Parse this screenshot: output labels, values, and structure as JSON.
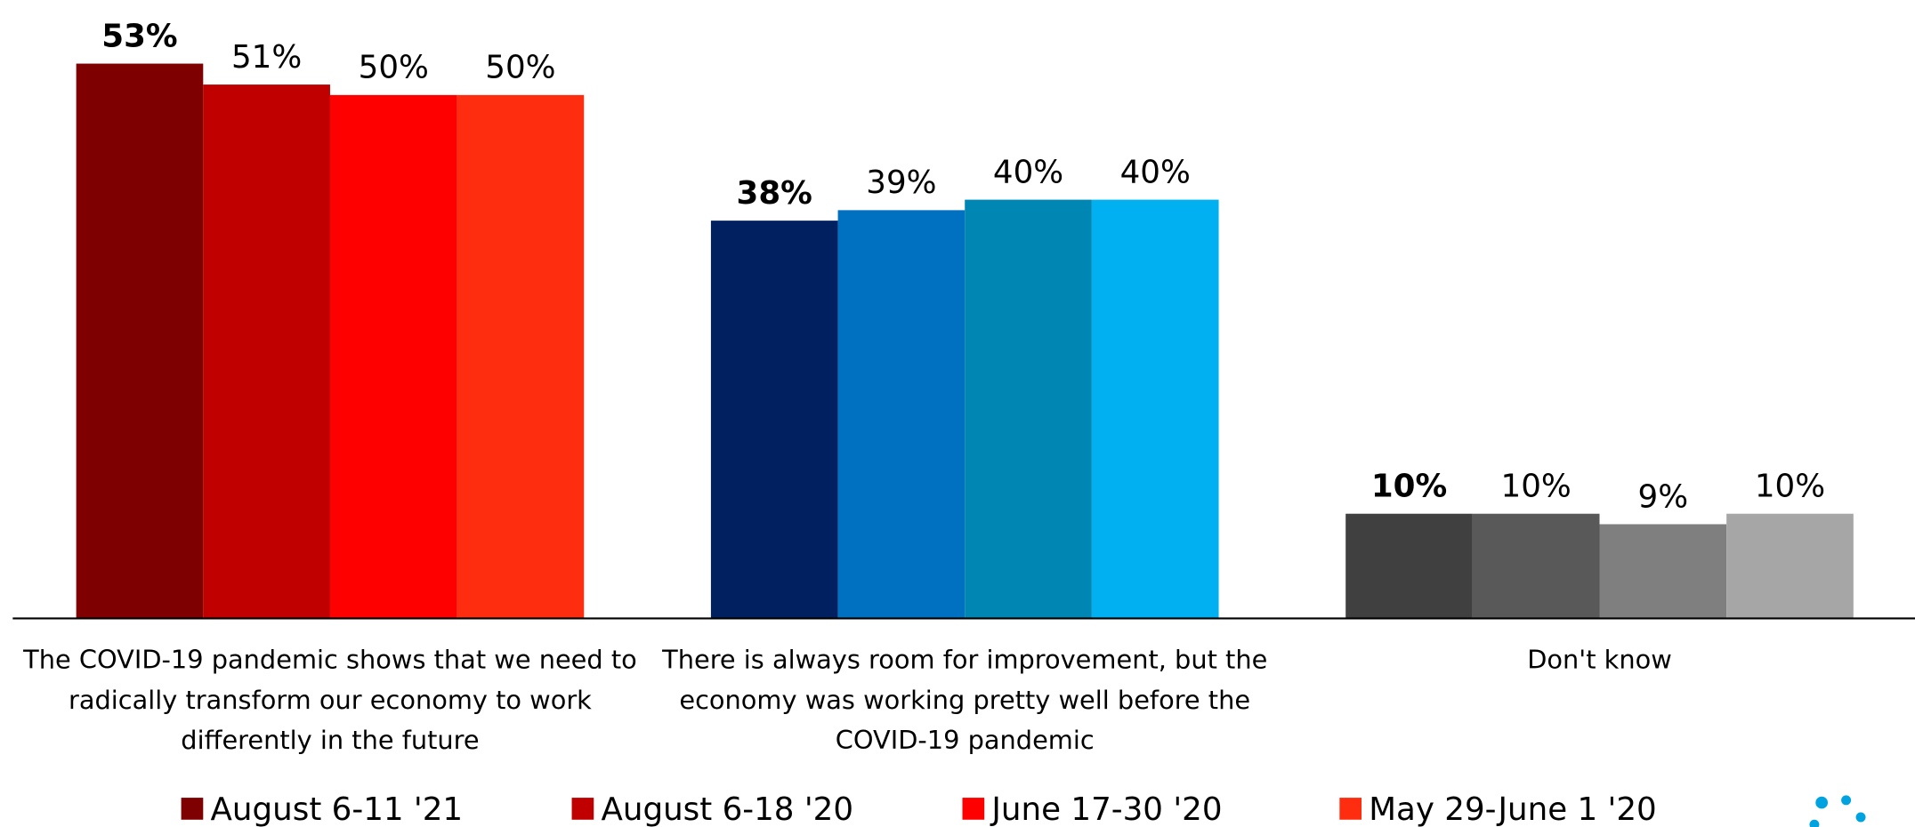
{
  "chart_data": {
    "type": "bar",
    "categories": [
      "The COVID-19 pandemic shows that we need to radically transform our economy to work differently in the future",
      "There is always room for improvement, but the economy was working pretty well before the COVID-19 pandemic",
      "Don't know"
    ],
    "series": [
      {
        "name": "August 6-11 '21",
        "bold": true,
        "colors": [
          "#7f0000",
          "#002060",
          "#404040"
        ],
        "values": [
          53,
          38,
          10
        ],
        "value_labels": [
          "53%",
          "38%",
          "10%"
        ]
      },
      {
        "name": "August 6-18 '20",
        "bold": false,
        "colors": [
          "#c00000",
          "#0070c0",
          "#595959"
        ],
        "values": [
          51,
          39,
          10
        ],
        "value_labels": [
          "51%",
          "39%",
          "10%"
        ]
      },
      {
        "name": "June 17-30 '20",
        "bold": false,
        "colors": [
          "#ff0000",
          "#0086b3",
          "#7f7f7f"
        ],
        "values": [
          50,
          40,
          9
        ],
        "value_labels": [
          "50%",
          "40%",
          "9%"
        ]
      },
      {
        "name": "May 29-June 1 '20",
        "bold": false,
        "colors": [
          "#ff2d0f",
          "#00b0f0",
          "#a6a6a6"
        ],
        "values": [
          50,
          40,
          10
        ],
        "value_labels": [
          "50%",
          "40%",
          "10%"
        ]
      }
    ],
    "ylim": [
      0,
      55
    ],
    "legend": "bottom"
  }
}
